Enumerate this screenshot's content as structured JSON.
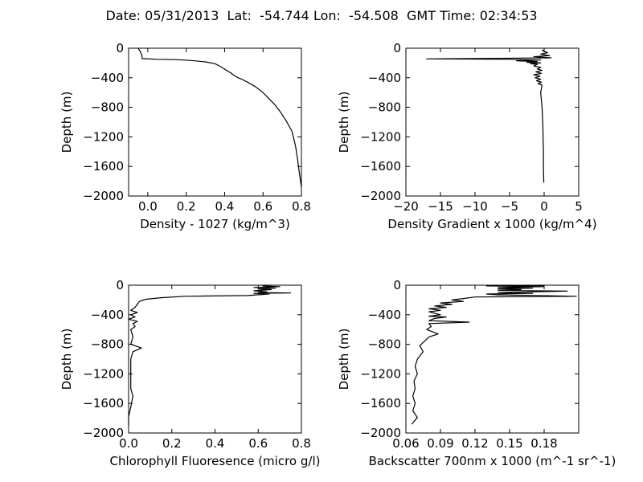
{
  "figure": {
    "supertitle": "Date: 05/31/2013  Lat:  -54.744 Lon:  -54.508  GMT Time: 02:34:53"
  },
  "chart_data": [
    {
      "type": "line",
      "xlabel": "Density - 1027 (kg/m^3)",
      "ylabel": "Depth (m)",
      "xlim": [
        -0.1,
        0.8
      ],
      "ylim": [
        -2000,
        0
      ],
      "xticks": [
        0.0,
        0.2,
        0.4,
        0.6,
        0.8
      ],
      "xtick_labels": [
        "0.0",
        "0.2",
        "0.4",
        "0.6",
        "0.8"
      ],
      "yticks": [
        0,
        -400,
        -800,
        -1200,
        -1600,
        -2000
      ],
      "ytick_labels": [
        "0",
        "−400",
        "−800",
        "−1200",
        "−1600",
        "−2000"
      ],
      "grid": false,
      "series": [
        {
          "color": "#000000",
          "points": [
            [
              -0.05,
              0
            ],
            [
              -0.04,
              -40
            ],
            [
              -0.03,
              -100
            ],
            [
              -0.03,
              -140
            ],
            [
              0.05,
              -150
            ],
            [
              0.15,
              -155
            ],
            [
              0.22,
              -165
            ],
            [
              0.3,
              -185
            ],
            [
              0.35,
              -210
            ],
            [
              0.38,
              -250
            ],
            [
              0.41,
              -300
            ],
            [
              0.43,
              -330
            ],
            [
              0.45,
              -370
            ],
            [
              0.47,
              -400
            ],
            [
              0.49,
              -420
            ],
            [
              0.52,
              -460
            ],
            [
              0.56,
              -520
            ],
            [
              0.6,
              -600
            ],
            [
              0.63,
              -680
            ],
            [
              0.66,
              -760
            ],
            [
              0.69,
              -860
            ],
            [
              0.72,
              -980
            ],
            [
              0.75,
              -1120
            ],
            [
              0.76,
              -1220
            ],
            [
              0.77,
              -1330
            ],
            [
              0.78,
              -1500
            ],
            [
              0.79,
              -1700
            ],
            [
              0.8,
              -1880
            ]
          ]
        }
      ]
    },
    {
      "type": "line",
      "xlabel": "Density Gradient x 1000 (kg/m^4)",
      "ylabel": "Depth (m)",
      "xlim": [
        -20,
        5
      ],
      "ylim": [
        -2000,
        0
      ],
      "xticks": [
        -20,
        -15,
        -10,
        -5,
        0,
        5
      ],
      "xtick_labels": [
        "−20",
        "−15",
        "−10",
        "−5",
        "0",
        "5"
      ],
      "yticks": [
        0,
        -400,
        -800,
        -1200,
        -1600,
        -2000
      ],
      "ytick_labels": [
        "0",
        "−400",
        "−800",
        "−1200",
        "−1600",
        "−2000"
      ],
      "grid": false,
      "series": [
        {
          "color": "#000000",
          "points": [
            [
              -0.3,
              -20
            ],
            [
              -0.1,
              -40
            ],
            [
              0.5,
              -60
            ],
            [
              -0.5,
              -80
            ],
            [
              0.8,
              -100
            ],
            [
              -1.5,
              -115
            ],
            [
              1.0,
              -130
            ],
            [
              -17.0,
              -145
            ],
            [
              -5.0,
              -150
            ],
            [
              -0.5,
              -160
            ],
            [
              -4.0,
              -170
            ],
            [
              -1.0,
              -180
            ],
            [
              -2.5,
              -190
            ],
            [
              -0.5,
              -200
            ],
            [
              -2.0,
              -210
            ],
            [
              -1.0,
              -220
            ],
            [
              -1.5,
              -240
            ],
            [
              -0.5,
              -260
            ],
            [
              -1.0,
              -280
            ],
            [
              -0.3,
              -300
            ],
            [
              -1.2,
              -320
            ],
            [
              -0.4,
              -340
            ],
            [
              -1.5,
              -360
            ],
            [
              -0.6,
              -380
            ],
            [
              -1.3,
              -400
            ],
            [
              -0.5,
              -420
            ],
            [
              -1.1,
              -440
            ],
            [
              -0.4,
              -460
            ],
            [
              -0.9,
              -480
            ],
            [
              -0.3,
              -500
            ],
            [
              -0.5,
              -600
            ],
            [
              -0.3,
              -800
            ],
            [
              -0.2,
              -1000
            ],
            [
              -0.15,
              -1200
            ],
            [
              -0.1,
              -1400
            ],
            [
              -0.1,
              -1600
            ],
            [
              -0.05,
              -1820
            ]
          ]
        }
      ]
    },
    {
      "type": "line",
      "xlabel": "Chlorophyll Fluoresence (micro g/l)",
      "ylabel": "Depth (m)",
      "xlim": [
        0.0,
        0.8
      ],
      "ylim": [
        -2000,
        0
      ],
      "xticks": [
        0.0,
        0.2,
        0.4,
        0.6,
        0.8
      ],
      "xtick_labels": [
        "0.0",
        "0.2",
        "0.4",
        "0.6",
        "0.8"
      ],
      "yticks": [
        0,
        -400,
        -800,
        -1200,
        -1600,
        -2000
      ],
      "ytick_labels": [
        "0",
        "−400",
        "−800",
        "−1200",
        "−1600",
        "−2000"
      ],
      "grid": false,
      "series": [
        {
          "color": "#000000",
          "points": [
            [
              0.62,
              -10
            ],
            [
              0.7,
              -20
            ],
            [
              0.58,
              -30
            ],
            [
              0.68,
              -40
            ],
            [
              0.6,
              -50
            ],
            [
              0.66,
              -60
            ],
            [
              0.58,
              -75
            ],
            [
              0.64,
              -90
            ],
            [
              0.6,
              -100
            ],
            [
              0.75,
              -105
            ],
            [
              0.58,
              -110
            ],
            [
              0.65,
              -120
            ],
            [
              0.55,
              -140
            ],
            [
              0.26,
              -150
            ],
            [
              0.15,
              -170
            ],
            [
              0.08,
              -190
            ],
            [
              0.05,
              -220
            ],
            [
              0.04,
              -260
            ],
            [
              0.03,
              -300
            ],
            [
              0.01,
              -340
            ],
            [
              0.04,
              -370
            ],
            [
              0.01,
              -400
            ],
            [
              0.03,
              -430
            ],
            [
              0.0,
              -460
            ],
            [
              0.04,
              -490
            ],
            [
              0.02,
              -520
            ],
            [
              0.03,
              -560
            ],
            [
              0.01,
              -600
            ],
            [
              0.02,
              -700
            ],
            [
              0.01,
              -800
            ],
            [
              0.06,
              -850
            ],
            [
              0.02,
              -900
            ],
            [
              0.01,
              -1000
            ],
            [
              0.01,
              -1200
            ],
            [
              0.01,
              -1400
            ],
            [
              0.02,
              -1500
            ],
            [
              0.01,
              -1650
            ],
            [
              0.0,
              -1780
            ],
            [
              0.0,
              -1900
            ]
          ]
        }
      ]
    },
    {
      "type": "line",
      "xlabel": "Backscatter 700nm x 1000 (m^-1 sr^-1)",
      "ylabel": "Depth (m)",
      "xlim": [
        0.06,
        0.21
      ],
      "ylim": [
        -2000,
        0
      ],
      "xticks": [
        0.06,
        0.09,
        0.12,
        0.15,
        0.18
      ],
      "xtick_labels": [
        "0.06",
        "0.09",
        "0.12",
        "0.15",
        "0.18"
      ],
      "yticks": [
        0,
        -400,
        -800,
        -1200,
        -1600,
        -2000
      ],
      "ytick_labels": [
        "0",
        "−400",
        "−800",
        "−1200",
        "−1600",
        "−2000"
      ],
      "grid": false,
      "series": [
        {
          "color": "#000000",
          "points": [
            [
              0.18,
              -5
            ],
            [
              0.13,
              -10
            ],
            [
              0.18,
              -20
            ],
            [
              0.14,
              -30
            ],
            [
              0.17,
              -40
            ],
            [
              0.14,
              -50
            ],
            [
              0.16,
              -60
            ],
            [
              0.14,
              -70
            ],
            [
              0.2,
              -80
            ],
            [
              0.14,
              -100
            ],
            [
              0.17,
              -110
            ],
            [
              0.13,
              -120
            ],
            [
              0.14,
              -130
            ],
            [
              0.208,
              -150
            ],
            [
              0.12,
              -160
            ],
            [
              0.11,
              -180
            ],
            [
              0.1,
              -200
            ],
            [
              0.11,
              -220
            ],
            [
              0.09,
              -240
            ],
            [
              0.1,
              -260
            ],
            [
              0.085,
              -280
            ],
            [
              0.095,
              -300
            ],
            [
              0.08,
              -320
            ],
            [
              0.09,
              -340
            ],
            [
              0.08,
              -360
            ],
            [
              0.085,
              -380
            ],
            [
              0.09,
              -400
            ],
            [
              0.08,
              -420
            ],
            [
              0.095,
              -430
            ],
            [
              0.085,
              -450
            ],
            [
              0.08,
              -480
            ],
            [
              0.115,
              -500
            ],
            [
              0.08,
              -520
            ],
            [
              0.082,
              -560
            ],
            [
              0.078,
              -600
            ],
            [
              0.088,
              -660
            ],
            [
              0.08,
              -700
            ],
            [
              0.076,
              -760
            ],
            [
              0.072,
              -820
            ],
            [
              0.075,
              -900
            ],
            [
              0.07,
              -1000
            ],
            [
              0.068,
              -1100
            ],
            [
              0.07,
              -1200
            ],
            [
              0.067,
              -1300
            ],
            [
              0.068,
              -1400
            ],
            [
              0.066,
              -1500
            ],
            [
              0.068,
              -1600
            ],
            [
              0.066,
              -1700
            ],
            [
              0.07,
              -1790
            ],
            [
              0.065,
              -1880
            ]
          ]
        }
      ]
    }
  ]
}
